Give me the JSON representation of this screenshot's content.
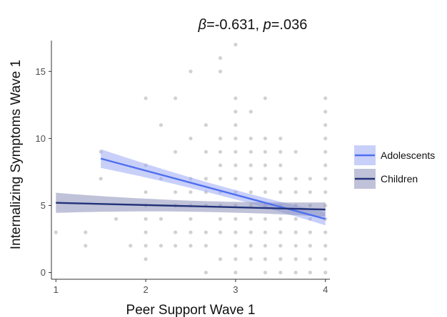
{
  "chart_data": {
    "type": "scatter",
    "title": {
      "beta_symbol": "β",
      "beta_value": "=-0.631, ",
      "p_symbol": "p",
      "p_value": "=.036"
    },
    "xlabel": "Peer Support Wave 1",
    "ylabel": "Internalizing Symptoms Wave 1",
    "xlim": [
      0.95,
      4.05
    ],
    "ylim": [
      -0.5,
      17.3
    ],
    "xticks": [
      1,
      2,
      3,
      4
    ],
    "yticks": [
      0,
      5,
      10,
      15
    ],
    "grid": false,
    "legend_placement": "right",
    "points": [
      [
        1.0,
        3
      ],
      [
        1.33,
        3
      ],
      [
        1.33,
        2
      ],
      [
        1.5,
        9
      ],
      [
        1.5,
        7
      ],
      [
        1.67,
        4
      ],
      [
        1.83,
        2
      ],
      [
        2.0,
        13
      ],
      [
        2.0,
        8
      ],
      [
        2.0,
        6
      ],
      [
        2.0,
        5
      ],
      [
        2.0,
        4
      ],
      [
        2.0,
        3
      ],
      [
        2.0,
        2
      ],
      [
        2.0,
        1
      ],
      [
        2.17,
        11
      ],
      [
        2.17,
        7
      ],
      [
        2.17,
        4
      ],
      [
        2.17,
        2
      ],
      [
        2.33,
        13
      ],
      [
        2.33,
        9
      ],
      [
        2.33,
        6
      ],
      [
        2.33,
        5
      ],
      [
        2.33,
        3
      ],
      [
        2.33,
        2
      ],
      [
        2.5,
        15
      ],
      [
        2.5,
        10
      ],
      [
        2.5,
        7
      ],
      [
        2.5,
        6
      ],
      [
        2.5,
        5
      ],
      [
        2.5,
        4
      ],
      [
        2.5,
        3
      ],
      [
        2.5,
        2
      ],
      [
        2.67,
        11
      ],
      [
        2.67,
        9
      ],
      [
        2.67,
        7
      ],
      [
        2.67,
        6
      ],
      [
        2.67,
        5
      ],
      [
        2.67,
        3
      ],
      [
        2.67,
        2
      ],
      [
        2.67,
        0
      ],
      [
        2.83,
        16
      ],
      [
        2.83,
        15
      ],
      [
        2.83,
        10
      ],
      [
        2.83,
        9
      ],
      [
        2.83,
        8
      ],
      [
        2.83,
        7
      ],
      [
        2.83,
        6
      ],
      [
        2.83,
        5
      ],
      [
        2.83,
        4
      ],
      [
        2.83,
        3
      ],
      [
        2.83,
        1
      ],
      [
        3.0,
        17
      ],
      [
        3.0,
        13
      ],
      [
        3.0,
        12
      ],
      [
        3.0,
        11
      ],
      [
        3.0,
        10
      ],
      [
        3.0,
        9
      ],
      [
        3.0,
        8
      ],
      [
        3.0,
        7
      ],
      [
        3.0,
        6
      ],
      [
        3.0,
        5
      ],
      [
        3.0,
        4
      ],
      [
        3.0,
        3
      ],
      [
        3.0,
        2
      ],
      [
        3.0,
        1
      ],
      [
        3.0,
        0
      ],
      [
        3.17,
        12
      ],
      [
        3.17,
        10
      ],
      [
        3.17,
        9
      ],
      [
        3.17,
        8
      ],
      [
        3.17,
        7
      ],
      [
        3.17,
        6
      ],
      [
        3.17,
        5
      ],
      [
        3.17,
        4
      ],
      [
        3.17,
        3
      ],
      [
        3.17,
        2
      ],
      [
        3.17,
        1
      ],
      [
        3.33,
        13
      ],
      [
        3.33,
        10
      ],
      [
        3.33,
        9
      ],
      [
        3.33,
        8
      ],
      [
        3.33,
        7
      ],
      [
        3.33,
        6
      ],
      [
        3.33,
        5
      ],
      [
        3.33,
        4
      ],
      [
        3.33,
        3
      ],
      [
        3.33,
        2
      ],
      [
        3.33,
        1
      ],
      [
        3.33,
        0
      ],
      [
        3.5,
        10
      ],
      [
        3.5,
        9
      ],
      [
        3.5,
        8
      ],
      [
        3.5,
        7
      ],
      [
        3.5,
        6
      ],
      [
        3.5,
        5
      ],
      [
        3.5,
        4
      ],
      [
        3.5,
        3
      ],
      [
        3.5,
        2
      ],
      [
        3.5,
        1
      ],
      [
        3.5,
        0
      ],
      [
        3.67,
        9
      ],
      [
        3.67,
        7
      ],
      [
        3.67,
        6
      ],
      [
        3.67,
        5
      ],
      [
        3.67,
        4
      ],
      [
        3.67,
        3
      ],
      [
        3.67,
        2
      ],
      [
        3.67,
        1
      ],
      [
        3.67,
        0
      ],
      [
        3.83,
        7
      ],
      [
        3.83,
        6
      ],
      [
        3.83,
        5
      ],
      [
        3.83,
        4
      ],
      [
        3.83,
        3
      ],
      [
        3.83,
        2
      ],
      [
        3.83,
        1
      ],
      [
        3.83,
        0
      ],
      [
        4.0,
        13
      ],
      [
        4.0,
        12
      ],
      [
        4.0,
        11
      ],
      [
        4.0,
        10
      ],
      [
        4.0,
        9
      ],
      [
        4.0,
        8
      ],
      [
        4.0,
        7
      ],
      [
        4.0,
        6
      ],
      [
        4.0,
        5
      ],
      [
        4.0,
        4
      ],
      [
        4.0,
        3
      ],
      [
        4.0,
        2
      ],
      [
        4.0,
        1
      ],
      [
        4.0,
        0
      ]
    ],
    "point_color": "#000000",
    "point_alpha": 0.18,
    "series": [
      {
        "name": "Adolescents",
        "color": "#4f6ff0",
        "band_color": "#9aaaf6",
        "x": [
          1.5,
          4.0
        ],
        "y": [
          8.5,
          4.0
        ],
        "band_halfwidth": [
          0.7,
          0.35
        ]
      },
      {
        "name": "Children",
        "color": "#22327a",
        "band_color": "#8a8fb8",
        "x": [
          1.0,
          4.0
        ],
        "y": [
          5.2,
          4.7
        ],
        "band_halfwidth": [
          0.75,
          0.4
        ]
      }
    ]
  }
}
